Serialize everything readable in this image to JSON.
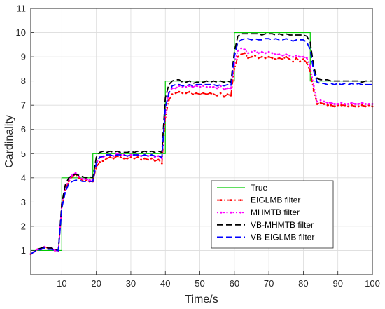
{
  "chart_data": {
    "type": "line",
    "title": "",
    "xlabel": "Time/s",
    "ylabel": "Cardinality",
    "xlim": [
      1,
      100
    ],
    "ylim": [
      0,
      11
    ],
    "xticks": [
      10,
      20,
      30,
      40,
      50,
      60,
      70,
      80,
      90,
      100
    ],
    "yticks": [
      1,
      2,
      3,
      4,
      5,
      6,
      7,
      8,
      9,
      10,
      11
    ],
    "grid": true,
    "legend_position": "lower-right",
    "x": [
      1,
      2,
      3,
      4,
      5,
      6,
      7,
      8,
      9,
      10,
      11,
      12,
      13,
      14,
      15,
      16,
      17,
      18,
      19,
      20,
      21,
      22,
      23,
      24,
      25,
      26,
      27,
      28,
      29,
      30,
      31,
      32,
      33,
      34,
      35,
      36,
      37,
      38,
      39,
      40,
      41,
      42,
      43,
      44,
      45,
      46,
      47,
      48,
      49,
      50,
      51,
      52,
      53,
      54,
      55,
      56,
      57,
      58,
      59,
      60,
      61,
      62,
      63,
      64,
      65,
      66,
      67,
      68,
      69,
      70,
      71,
      72,
      73,
      74,
      75,
      76,
      77,
      78,
      79,
      80,
      81,
      82,
      83,
      84,
      85,
      86,
      87,
      88,
      89,
      90,
      91,
      92,
      93,
      94,
      95,
      96,
      97,
      98,
      99,
      100
    ],
    "series": [
      {
        "name": "True",
        "color": "#00cc00",
        "style": "solid",
        "marker": "none",
        "values": [
          1,
          1,
          1,
          1,
          1,
          1,
          1,
          1,
          1,
          4,
          4,
          4,
          4,
          4,
          4,
          4,
          4,
          4,
          5,
          5,
          5,
          5,
          5,
          5,
          5,
          5,
          5,
          5,
          5,
          5,
          5,
          5,
          5,
          5,
          5,
          5,
          5,
          5,
          5,
          8,
          8,
          8,
          8,
          8,
          8,
          8,
          8,
          8,
          8,
          8,
          8,
          8,
          8,
          8,
          8,
          8,
          8,
          8,
          8,
          10,
          10,
          10,
          10,
          10,
          10,
          10,
          10,
          10,
          10,
          10,
          10,
          10,
          10,
          10,
          10,
          10,
          10,
          10,
          10,
          10,
          10,
          8,
          8,
          8,
          8,
          8,
          8,
          8,
          8,
          8,
          8,
          8,
          8,
          8,
          8,
          8,
          8,
          8,
          8,
          8
        ]
      },
      {
        "name": "EIGLMB filter",
        "color": "#ff0000",
        "style": "dashdot",
        "marker": "dot",
        "values": [
          0.85,
          0.95,
          1.05,
          1.05,
          1.15,
          1.1,
          1.1,
          1.0,
          1.0,
          2.8,
          3.5,
          3.85,
          4.05,
          4.15,
          4.0,
          3.9,
          3.9,
          3.85,
          3.85,
          4.45,
          4.65,
          4.7,
          4.8,
          4.85,
          4.8,
          4.9,
          4.85,
          4.8,
          4.8,
          4.85,
          4.8,
          4.85,
          4.75,
          4.8,
          4.75,
          4.8,
          4.7,
          4.75,
          4.6,
          6.5,
          7.2,
          7.45,
          7.5,
          7.55,
          7.5,
          7.5,
          7.55,
          7.45,
          7.5,
          7.45,
          7.5,
          7.45,
          7.5,
          7.45,
          7.4,
          7.5,
          7.35,
          7.45,
          7.4,
          8.5,
          9.0,
          9.1,
          9.15,
          8.95,
          9.0,
          9.05,
          8.95,
          9.0,
          8.95,
          9.0,
          8.95,
          8.9,
          8.95,
          8.9,
          9.0,
          8.9,
          8.8,
          8.95,
          8.8,
          8.9,
          8.75,
          8.4,
          7.6,
          7.05,
          7.1,
          7.05,
          7.0,
          7.0,
          6.95,
          7.0,
          7.0,
          7.0,
          6.95,
          7.0,
          6.95,
          6.95,
          7.0,
          6.95,
          7.0,
          6.95
        ]
      },
      {
        "name": "MHMTB filter",
        "color": "#ff00ff",
        "style": "dotted",
        "marker": "dot",
        "values": [
          0.85,
          0.95,
          1.05,
          1.05,
          1.15,
          1.1,
          1.1,
          1.0,
          1.0,
          2.9,
          3.6,
          3.9,
          4.1,
          4.2,
          4.05,
          3.95,
          3.95,
          3.9,
          3.9,
          4.6,
          4.85,
          4.85,
          4.95,
          4.95,
          4.9,
          5.0,
          4.95,
          4.95,
          4.9,
          4.95,
          4.95,
          4.95,
          4.9,
          4.95,
          4.9,
          4.95,
          4.85,
          4.9,
          4.8,
          6.7,
          7.5,
          7.7,
          7.7,
          7.8,
          7.75,
          7.75,
          7.8,
          7.75,
          7.8,
          7.75,
          7.8,
          7.75,
          7.75,
          7.75,
          7.7,
          7.8,
          7.65,
          7.7,
          7.7,
          8.7,
          9.25,
          9.35,
          9.3,
          9.15,
          9.2,
          9.25,
          9.15,
          9.2,
          9.15,
          9.2,
          9.15,
          9.1,
          9.1,
          9.05,
          9.1,
          9.05,
          9.0,
          9.05,
          9.0,
          9.0,
          8.95,
          8.6,
          7.8,
          7.15,
          7.2,
          7.15,
          7.1,
          7.1,
          7.05,
          7.05,
          7.1,
          7.05,
          7.05,
          7.1,
          7.05,
          7.05,
          7.1,
          7.05,
          7.05,
          7.05
        ]
      },
      {
        "name": "VB-MHMTB filter",
        "color": "#000000",
        "style": "dashed",
        "marker": "none",
        "values": [
          0.85,
          0.95,
          1.05,
          1.1,
          1.15,
          1.1,
          1.1,
          1.05,
          1.0,
          2.95,
          3.7,
          4.0,
          4.1,
          4.15,
          4.1,
          4.05,
          4.0,
          4.05,
          4.0,
          4.85,
          5.05,
          5.1,
          5.05,
          5.1,
          5.05,
          5.1,
          5.05,
          5.05,
          5.05,
          5.1,
          5.05,
          5.1,
          5.05,
          5.1,
          5.05,
          5.1,
          5.05,
          5.1,
          5.05,
          7.3,
          7.85,
          8.0,
          8.05,
          8.05,
          7.95,
          7.95,
          8.0,
          7.9,
          7.95,
          7.95,
          7.95,
          8.0,
          7.95,
          8.0,
          7.95,
          8.0,
          7.95,
          8.0,
          7.95,
          9.2,
          9.85,
          9.95,
          9.95,
          9.95,
          9.95,
          9.95,
          9.95,
          9.9,
          9.95,
          9.95,
          9.95,
          9.9,
          9.95,
          9.9,
          9.95,
          9.9,
          9.9,
          9.9,
          9.9,
          9.9,
          9.85,
          9.6,
          8.6,
          8.1,
          8.05,
          8.05,
          8.05,
          8.0,
          8.0,
          8.0,
          8.0,
          8.0,
          8.0,
          8.0,
          8.0,
          8.0,
          7.95,
          8.0,
          8.0,
          8.0
        ]
      },
      {
        "name": "VB-EIGLMB filter",
        "color": "#0000ff",
        "style": "dashed",
        "marker": "none",
        "values": [
          0.85,
          0.95,
          1.0,
          1.05,
          1.1,
          1.05,
          1.05,
          1.0,
          1.0,
          2.75,
          3.4,
          3.75,
          3.85,
          3.9,
          3.9,
          3.85,
          3.85,
          3.85,
          3.85,
          4.6,
          4.85,
          4.9,
          4.95,
          4.95,
          4.9,
          4.95,
          4.95,
          4.95,
          4.9,
          4.95,
          4.95,
          4.95,
          4.9,
          4.95,
          4.9,
          4.95,
          4.9,
          4.9,
          4.85,
          6.9,
          7.5,
          7.8,
          7.85,
          7.85,
          7.8,
          7.8,
          7.85,
          7.8,
          7.85,
          7.85,
          7.85,
          7.85,
          7.85,
          7.85,
          7.8,
          7.85,
          7.8,
          7.85,
          7.8,
          9.0,
          9.6,
          9.7,
          9.75,
          9.75,
          9.7,
          9.75,
          9.7,
          9.7,
          9.75,
          9.75,
          9.7,
          9.75,
          9.7,
          9.7,
          9.75,
          9.7,
          9.65,
          9.7,
          9.7,
          9.7,
          9.6,
          9.3,
          8.4,
          7.95,
          7.9,
          7.9,
          7.85,
          7.9,
          7.85,
          7.9,
          7.85,
          7.9,
          7.85,
          7.9,
          7.85,
          7.9,
          7.85,
          7.85,
          7.85,
          7.85
        ]
      }
    ]
  }
}
